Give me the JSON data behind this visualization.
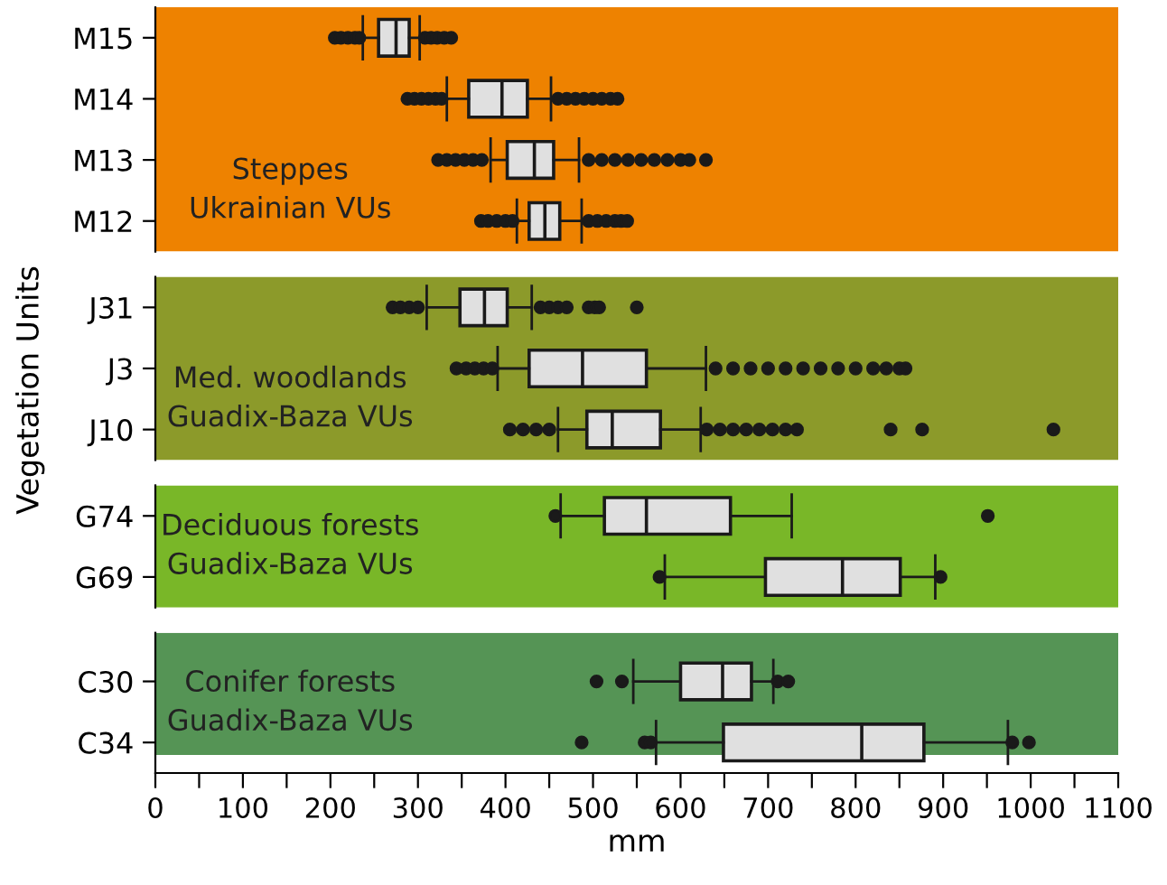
{
  "chart_data": [
    {
      "type": "box",
      "ylabel": "Vegetation Units",
      "categories": [
        "M15",
        "M14",
        "M13",
        "M12"
      ],
      "orientation": "horizontal",
      "xlim": [
        0,
        1100
      ],
      "tick_labels": "y",
      "grid": false,
      "boxes": [
        {
          "low": 237,
          "q1": 255,
          "median": 275,
          "q3": 290,
          "high": 302,
          "outliers": [
            205,
            212,
            220,
            228,
            233,
            308,
            315,
            322,
            330,
            338
          ]
        },
        {
          "low": 333,
          "q1": 358,
          "median": 396,
          "q3": 425,
          "high": 452,
          "outliers": [
            288,
            296,
            304,
            312,
            320,
            327,
            460,
            470,
            480,
            490,
            500,
            510,
            520,
            528
          ]
        },
        {
          "low": 383,
          "q1": 402,
          "median": 433,
          "q3": 455,
          "high": 484,
          "outliers": [
            323,
            333,
            343,
            353,
            363,
            373,
            495,
            510,
            525,
            540,
            555,
            570,
            585,
            600,
            610,
            629
          ]
        },
        {
          "low": 413,
          "q1": 427,
          "median": 445,
          "q3": 462,
          "high": 487,
          "outliers": [
            372,
            380,
            390,
            400,
            408,
            495,
            505,
            515,
            525,
            532,
            539
          ]
        }
      ],
      "bands": [
        {
          "axis": "x",
          "from": 0,
          "to": 1100,
          "color": "#ee8200",
          "label": "Steppes\nUkrainian VUs"
        }
      ]
    },
    {
      "type": "box",
      "categories": [
        "J31",
        "J3",
        "J10"
      ],
      "orientation": "horizontal",
      "xlim": [
        0,
        1100
      ],
      "tick_labels": "y",
      "grid": false,
      "boxes": [
        {
          "low": 310,
          "q1": 348,
          "median": 376,
          "q3": 402,
          "high": 430,
          "outliers": [
            271,
            280,
            290,
            300,
            440,
            450,
            460,
            470,
            495,
            502,
            507,
            550
          ]
        },
        {
          "low": 391,
          "q1": 427,
          "median": 488,
          "q3": 561,
          "high": 629,
          "outliers": [
            344,
            355,
            365,
            375,
            385,
            640,
            660,
            680,
            700,
            720,
            740,
            760,
            780,
            800,
            820,
            835,
            850,
            857
          ]
        },
        {
          "low": 460,
          "q1": 493,
          "median": 522,
          "q3": 577,
          "high": 623,
          "outliers": [
            405,
            420,
            435,
            450,
            630,
            645,
            660,
            675,
            690,
            705,
            720,
            733,
            840,
            876,
            1026
          ]
        }
      ],
      "bands": [
        {
          "axis": "x",
          "from": 0,
          "to": 1100,
          "color": "#8c9a2a",
          "label": "Med. woodlands\nGuadix-Baza VUs"
        }
      ]
    },
    {
      "type": "box",
      "categories": [
        "G74",
        "G69"
      ],
      "orientation": "horizontal",
      "xlim": [
        0,
        1100
      ],
      "tick_labels": "y",
      "grid": false,
      "boxes": [
        {
          "low": 463,
          "q1": 513,
          "median": 561,
          "q3": 657,
          "high": 727,
          "outliers": [
            457,
            951
          ]
        },
        {
          "low": 582,
          "q1": 697,
          "median": 785,
          "q3": 851,
          "high": 891,
          "outliers": [
            576,
            897
          ]
        }
      ],
      "bands": [
        {
          "axis": "x",
          "from": 0,
          "to": 1100,
          "color": "#79b728",
          "label": "Deciduous forests\nGuadix-Baza VUs"
        }
      ]
    },
    {
      "type": "box",
      "xlabel": "mm",
      "categories": [
        "C30",
        "C34"
      ],
      "orientation": "horizontal",
      "xlim": [
        0,
        1100
      ],
      "grid": false,
      "xticks": [
        0,
        {
          "value": 50,
          "label": null
        },
        100,
        {
          "value": 150,
          "label": null
        },
        200,
        {
          "value": 250,
          "label": null
        },
        300,
        {
          "value": 350,
          "label": null
        },
        400,
        {
          "value": 450,
          "label": null
        },
        500,
        {
          "value": 550,
          "label": null
        },
        600,
        {
          "value": 650,
          "label": null
        },
        700,
        {
          "value": 750,
          "label": null
        },
        800,
        {
          "value": 850,
          "label": null
        },
        900,
        {
          "value": 950,
          "label": null
        },
        1000,
        {
          "value": 1050,
          "label": null
        },
        1100
      ],
      "boxes": [
        {
          "low": 546,
          "q1": 600,
          "median": 648,
          "q3": 681,
          "high": 706,
          "outliers": [
            504,
            533,
            711,
            723
          ]
        },
        {
          "low": 572,
          "q1": 649,
          "median": 807,
          "q3": 878,
          "high": 974,
          "outliers": [
            487,
            559,
            566,
            979,
            998
          ]
        }
      ],
      "bands": [
        {
          "axis": "x",
          "from": 0,
          "to": 1100,
          "color": "#559455",
          "label": "Conifer forests\nGuadix-Baza VUs"
        }
      ]
    }
  ]
}
